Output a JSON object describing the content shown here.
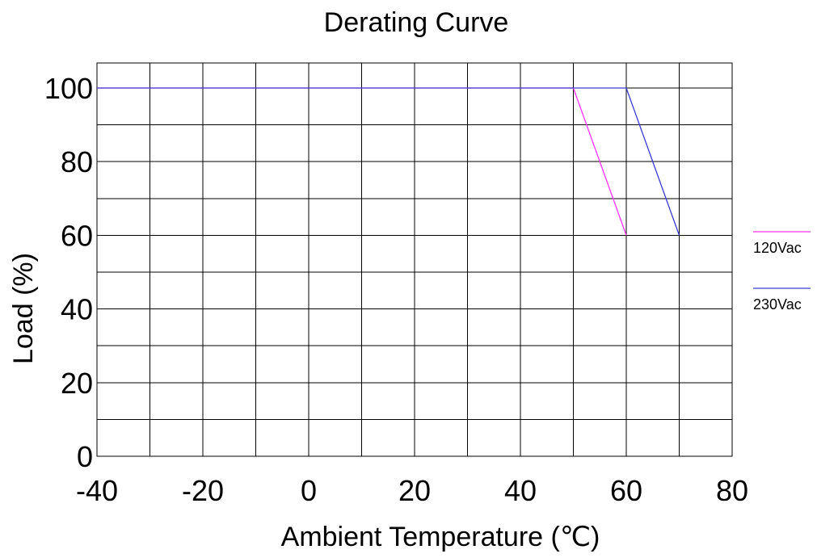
{
  "chart_data": {
    "type": "line",
    "title": "Derating Curve",
    "xlabel": "Ambient Temperature (℃)",
    "ylabel": "Load (%)",
    "xlim": [
      -40,
      80
    ],
    "ylim": [
      0,
      100
    ],
    "x_ticks": [
      "-40",
      "-20",
      "0",
      "20",
      "40",
      "60",
      "80"
    ],
    "y_ticks": [
      "0",
      "20",
      "40",
      "60",
      "80",
      "100"
    ],
    "grid": true,
    "legend_position": "right",
    "series": [
      {
        "name": "120Vac",
        "color": "#ff33ff",
        "points": [
          [
            -40,
            100
          ],
          [
            50,
            100
          ],
          [
            60,
            60
          ]
        ]
      },
      {
        "name": "230Vac",
        "color": "#3a3ad0",
        "points": [
          [
            -40,
            100
          ],
          [
            60,
            100
          ],
          [
            70,
            60
          ]
        ]
      }
    ]
  }
}
